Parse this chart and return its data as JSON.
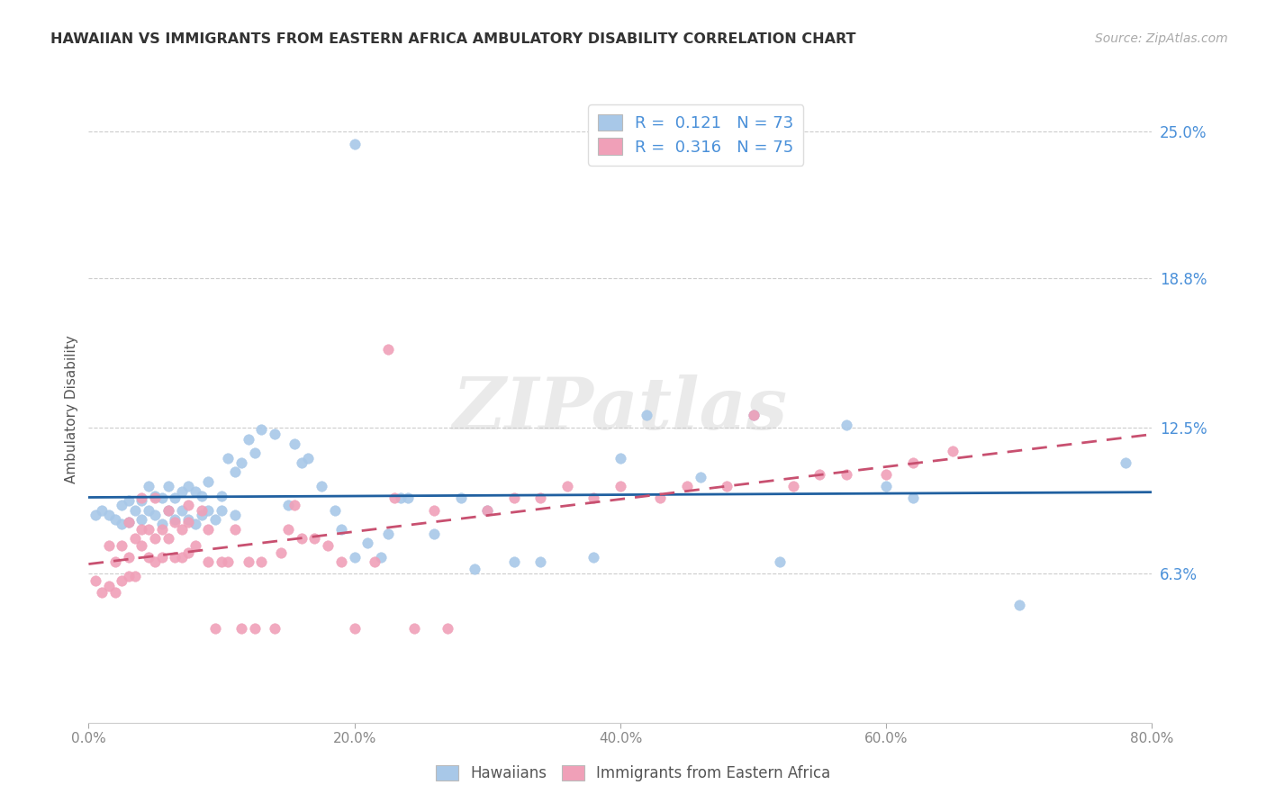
{
  "title": "HAWAIIAN VS IMMIGRANTS FROM EASTERN AFRICA AMBULATORY DISABILITY CORRELATION CHART",
  "source": "Source: ZipAtlas.com",
  "ylabel": "Ambulatory Disability",
  "xlim": [
    0.0,
    0.8
  ],
  "ylim": [
    0.0,
    0.265
  ],
  "ytick_labels": [
    "6.3%",
    "12.5%",
    "18.8%",
    "25.0%"
  ],
  "ytick_values": [
    0.063,
    0.125,
    0.188,
    0.25
  ],
  "xtick_labels": [
    "0.0%",
    "20.0%",
    "40.0%",
    "60.0%",
    "80.0%"
  ],
  "xtick_values": [
    0.0,
    0.2,
    0.4,
    0.6,
    0.8
  ],
  "legend_label1": "Hawaiians",
  "legend_label2": "Immigrants from Eastern Africa",
  "r1": 0.121,
  "n1": 73,
  "r2": 0.316,
  "n2": 75,
  "color_blue": "#A8C8E8",
  "color_pink": "#F0A0B8",
  "color_blue_line": "#2060A0",
  "color_pink_line": "#C85070",
  "watermark": "ZIPatlas",
  "blue_scatter_x": [
    0.005,
    0.01,
    0.015,
    0.02,
    0.025,
    0.025,
    0.03,
    0.03,
    0.035,
    0.04,
    0.04,
    0.045,
    0.045,
    0.05,
    0.05,
    0.055,
    0.055,
    0.06,
    0.06,
    0.065,
    0.065,
    0.07,
    0.07,
    0.075,
    0.075,
    0.08,
    0.08,
    0.085,
    0.085,
    0.09,
    0.09,
    0.095,
    0.1,
    0.1,
    0.105,
    0.11,
    0.11,
    0.115,
    0.12,
    0.125,
    0.13,
    0.14,
    0.15,
    0.155,
    0.16,
    0.165,
    0.175,
    0.185,
    0.19,
    0.2,
    0.21,
    0.22,
    0.225,
    0.235,
    0.24,
    0.26,
    0.28,
    0.29,
    0.3,
    0.32,
    0.34,
    0.38,
    0.4,
    0.2,
    0.42,
    0.46,
    0.5,
    0.52,
    0.57,
    0.6,
    0.62,
    0.7,
    0.78
  ],
  "blue_scatter_y": [
    0.088,
    0.09,
    0.088,
    0.086,
    0.084,
    0.092,
    0.085,
    0.094,
    0.09,
    0.086,
    0.094,
    0.09,
    0.1,
    0.088,
    0.096,
    0.084,
    0.095,
    0.09,
    0.1,
    0.086,
    0.095,
    0.09,
    0.098,
    0.086,
    0.1,
    0.084,
    0.098,
    0.088,
    0.096,
    0.09,
    0.102,
    0.086,
    0.09,
    0.096,
    0.112,
    0.088,
    0.106,
    0.11,
    0.12,
    0.114,
    0.124,
    0.122,
    0.092,
    0.118,
    0.11,
    0.112,
    0.1,
    0.09,
    0.082,
    0.07,
    0.076,
    0.07,
    0.08,
    0.095,
    0.095,
    0.08,
    0.095,
    0.065,
    0.09,
    0.068,
    0.068,
    0.07,
    0.112,
    0.245,
    0.13,
    0.104,
    0.13,
    0.068,
    0.126,
    0.1,
    0.095,
    0.05,
    0.11
  ],
  "pink_scatter_x": [
    0.005,
    0.01,
    0.015,
    0.015,
    0.02,
    0.02,
    0.025,
    0.025,
    0.03,
    0.03,
    0.03,
    0.035,
    0.035,
    0.04,
    0.04,
    0.04,
    0.045,
    0.045,
    0.05,
    0.05,
    0.05,
    0.055,
    0.055,
    0.06,
    0.06,
    0.065,
    0.065,
    0.07,
    0.07,
    0.075,
    0.075,
    0.075,
    0.08,
    0.085,
    0.09,
    0.09,
    0.095,
    0.1,
    0.105,
    0.11,
    0.115,
    0.12,
    0.125,
    0.13,
    0.14,
    0.145,
    0.15,
    0.155,
    0.16,
    0.17,
    0.18,
    0.19,
    0.2,
    0.215,
    0.225,
    0.23,
    0.245,
    0.26,
    0.27,
    0.3,
    0.32,
    0.34,
    0.36,
    0.38,
    0.4,
    0.43,
    0.45,
    0.48,
    0.5,
    0.53,
    0.55,
    0.57,
    0.6,
    0.62,
    0.65
  ],
  "pink_scatter_y": [
    0.06,
    0.055,
    0.058,
    0.075,
    0.055,
    0.068,
    0.06,
    0.075,
    0.062,
    0.07,
    0.085,
    0.062,
    0.078,
    0.075,
    0.082,
    0.095,
    0.07,
    0.082,
    0.068,
    0.078,
    0.095,
    0.07,
    0.082,
    0.078,
    0.09,
    0.07,
    0.085,
    0.07,
    0.082,
    0.072,
    0.085,
    0.092,
    0.075,
    0.09,
    0.068,
    0.082,
    0.04,
    0.068,
    0.068,
    0.082,
    0.04,
    0.068,
    0.04,
    0.068,
    0.04,
    0.072,
    0.082,
    0.092,
    0.078,
    0.078,
    0.075,
    0.068,
    0.04,
    0.068,
    0.158,
    0.095,
    0.04,
    0.09,
    0.04,
    0.09,
    0.095,
    0.095,
    0.1,
    0.095,
    0.1,
    0.095,
    0.1,
    0.1,
    0.13,
    0.1,
    0.105,
    0.105,
    0.105,
    0.11,
    0.115
  ]
}
